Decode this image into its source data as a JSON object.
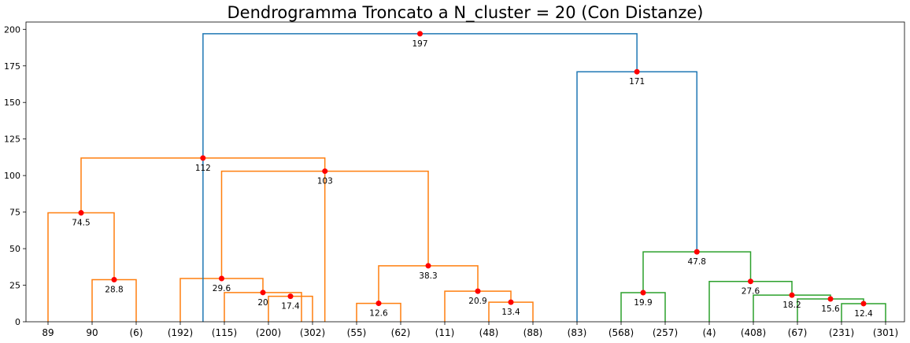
{
  "chart_data": {
    "type": "dendrogram",
    "title": "Dendrogramma Troncato a N_cluster = 20 (Con Distanze)",
    "ylim": [
      0,
      205
    ],
    "yticks": [
      0,
      25,
      50,
      75,
      100,
      125,
      150,
      175,
      200
    ],
    "grid": false,
    "leaves": [
      "89",
      "90",
      "(6)",
      "(192)",
      "(115)",
      "(200)",
      "(302)",
      "(55)",
      "(62)",
      "(11)",
      "(48)",
      "(88)",
      "(83)",
      "(568)",
      "(257)",
      "(4)",
      "(408)",
      "(67)",
      "(231)",
      "(301)"
    ],
    "colors": {
      "orange": "#ff7f0e",
      "green": "#2ca02c",
      "blue": "#1f77b4",
      "marker": "#ff0000"
    },
    "merges": [
      {
        "left": 0,
        "right": 1.5,
        "height": 74.5,
        "label": "74.5",
        "color": "#ff7f0e"
      },
      {
        "left": 1,
        "right": 2,
        "height": 28.8,
        "label": "28.8",
        "color": "#ff7f0e"
      },
      {
        "left": 3,
        "right": 4.875,
        "height": 29.6,
        "label": "29.6",
        "color": "#ff7f0e"
      },
      {
        "left": 4,
        "right": 5.75,
        "height": 20,
        "label": "20",
        "color": "#ff7f0e"
      },
      {
        "left": 5,
        "right": 6,
        "height": 17.4,
        "label": "17.4",
        "color": "#ff7f0e"
      },
      {
        "left": 7,
        "right": 8,
        "height": 12.6,
        "label": "12.6",
        "color": "#ff7f0e"
      },
      {
        "left": 9,
        "right": 10.5,
        "height": 20.9,
        "label": "20.9",
        "color": "#ff7f0e"
      },
      {
        "left": 10,
        "right": 11,
        "height": 13.4,
        "label": "13.4",
        "color": "#ff7f0e"
      },
      {
        "left": 7.5,
        "right": 9.75,
        "height": 38.3,
        "label": "38.3",
        "color": "#ff7f0e"
      },
      {
        "left": 3.9375,
        "right": 8.625,
        "height": 103,
        "label": "103",
        "color": "#ff7f0e"
      },
      {
        "left": 0.75,
        "right": 6.28,
        "height": 112,
        "label": "112",
        "color": "#ff7f0e"
      },
      {
        "left": 13,
        "right": 14,
        "height": 19.9,
        "label": "19.9",
        "color": "#2ca02c"
      },
      {
        "left": 18,
        "right": 19,
        "height": 12.4,
        "label": "12.4",
        "color": "#2ca02c"
      },
      {
        "left": 17,
        "right": 18.5,
        "height": 15.6,
        "label": "15.6",
        "color": "#2ca02c"
      },
      {
        "left": 16,
        "right": 17.75,
        "height": 18.2,
        "label": "18.2",
        "color": "#2ca02c"
      },
      {
        "left": 15,
        "right": 16.875,
        "height": 27.6,
        "label": "27.6",
        "color": "#2ca02c"
      },
      {
        "left": 13.5,
        "right": 15.9375,
        "height": 47.8,
        "label": "47.8",
        "color": "#2ca02c"
      },
      {
        "left": 12,
        "right": 14.71875,
        "height": 171,
        "label": "171",
        "color": "#1f77b4"
      },
      {
        "left": 3.515625,
        "right": 13.359375,
        "height": 197,
        "label": "197",
        "color": "#1f77b4"
      }
    ]
  }
}
